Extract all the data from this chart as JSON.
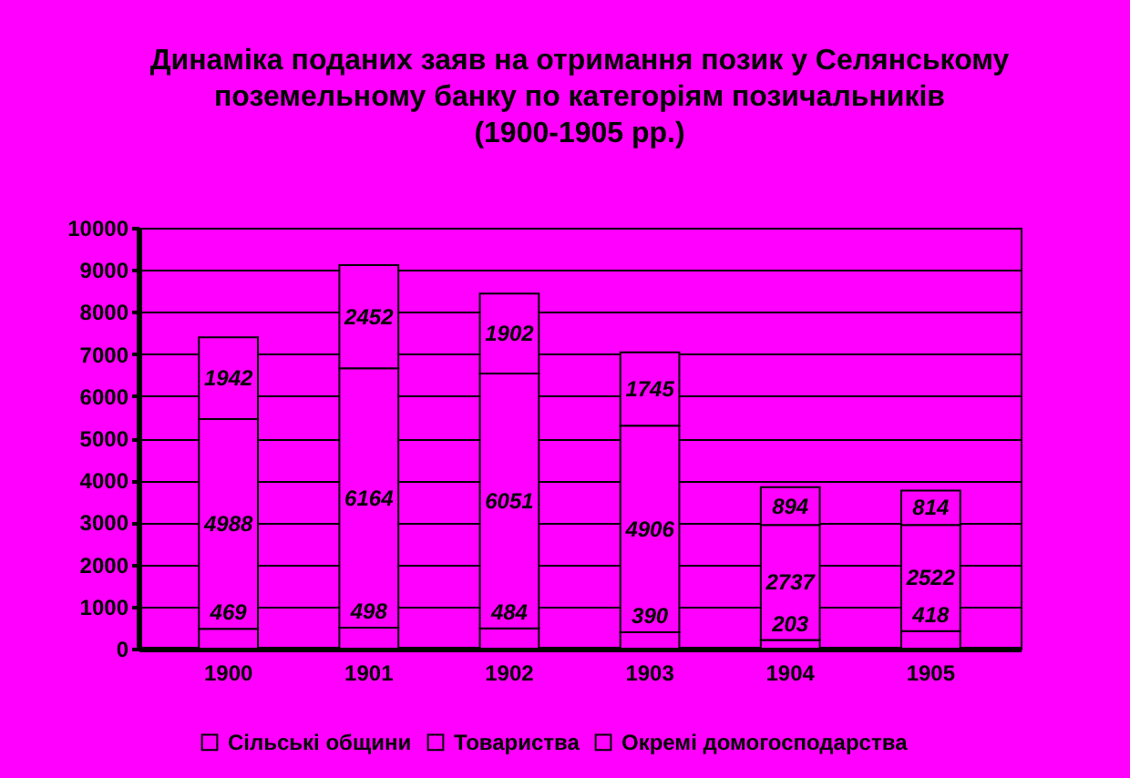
{
  "chart_data": {
    "type": "bar",
    "title": "Динаміка поданих заяв на отримання позик у Селянському\nпоземельному банку по категоріям позичальників\n(1900-1905 рр.)",
    "categories": [
      "1900",
      "1901",
      "1902",
      "1903",
      "1904",
      "1905"
    ],
    "stacked": true,
    "series": [
      {
        "name": "Сільські общини",
        "color": "#ff00ff",
        "values": [
          469,
          498,
          484,
          390,
          203,
          418
        ]
      },
      {
        "name": "Товариства",
        "color": "#ff00ff",
        "values": [
          4988,
          6164,
          6051,
          4906,
          2737,
          2522
        ]
      },
      {
        "name": "Окремі домогосподарства",
        "color": "#ff00ff",
        "values": [
          1942,
          2452,
          1902,
          1745,
          894,
          814
        ]
      }
    ],
    "ylim": [
      0,
      10000
    ],
    "yticks": [
      0,
      1000,
      2000,
      3000,
      4000,
      5000,
      6000,
      7000,
      8000,
      9000,
      10000
    ],
    "grid": "y",
    "legend": "bottom",
    "data_labels": true
  }
}
